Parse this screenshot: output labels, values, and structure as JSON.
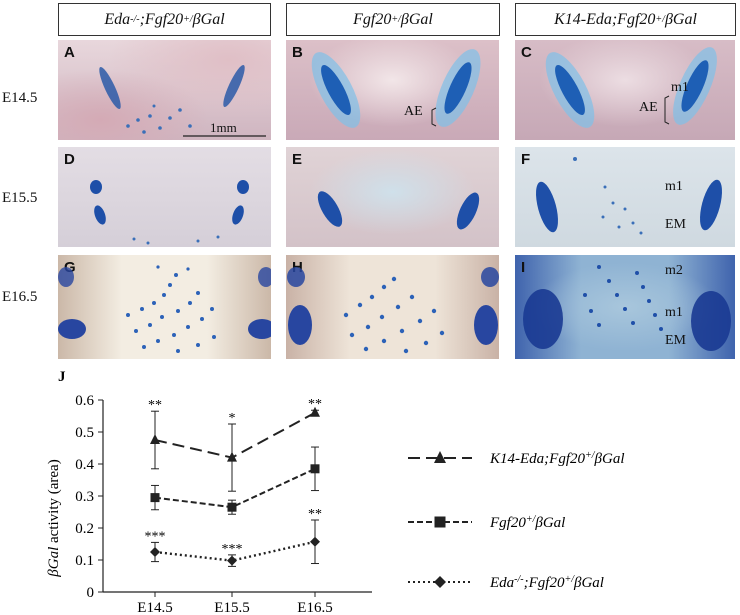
{
  "headers": [
    {
      "main": "Eda",
      "sup": "-/-",
      "rest": ";Fgf20",
      "sup2": "+/",
      "end": "βGal"
    },
    {
      "main": "Fgf20",
      "sup": "+/",
      "rest": "βGal",
      "sup2": "",
      "end": ""
    },
    {
      "main": "K14-Eda;Fgf20",
      "sup": "+/",
      "rest": "βGal",
      "sup2": "",
      "end": ""
    }
  ],
  "rows": [
    "E14.5",
    "E15.5",
    "E16.5"
  ],
  "panels": [
    {
      "letter": "A",
      "ann": [],
      "scale": "1mm"
    },
    {
      "letter": "B",
      "ann": [
        "AE"
      ]
    },
    {
      "letter": "C",
      "ann": [
        "m1",
        "AE"
      ]
    },
    {
      "letter": "D",
      "ann": []
    },
    {
      "letter": "E",
      "ann": []
    },
    {
      "letter": "F",
      "ann": [
        "m1",
        "EM"
      ]
    },
    {
      "letter": "G",
      "ann": []
    },
    {
      "letter": "H",
      "ann": []
    },
    {
      "letter": "I",
      "ann": [
        "m2",
        "m1",
        "EM"
      ]
    }
  ],
  "chart_data": {
    "type": "line",
    "panel_label": "J",
    "ylabel_main": "βGal",
    "ylabel_rest": " activity (area)",
    "categories": [
      "E14.5",
      "E15.5",
      "E16.5"
    ],
    "ylim": [
      0,
      0.6
    ],
    "yticks": [
      "0",
      "0.1",
      "0.2",
      "0.3",
      "0.4",
      "0.5",
      "0.6"
    ],
    "series": [
      {
        "name": "K14-Eda;Fgf20+/βGal",
        "legend_main": "K14-Eda;Fgf20",
        "legend_sup": "+/",
        "legend_end": "βGal",
        "marker": "triangle",
        "dash": "long",
        "values": [
          0.475,
          0.42,
          0.56
        ],
        "err": [
          0.09,
          0.105,
          0.008
        ],
        "sig": [
          "**",
          "*",
          "**"
        ]
      },
      {
        "name": "Fgf20+/βGal",
        "legend_main": "Fgf20",
        "legend_sup": "+/",
        "legend_end": "βGal",
        "marker": "square",
        "dash": "short",
        "values": [
          0.295,
          0.265,
          0.385
        ],
        "err": [
          0.038,
          0.022,
          0.068
        ],
        "sig": [
          "",
          "",
          ""
        ]
      },
      {
        "name": "Eda-/-;Fgf20+/βGal",
        "legend_main": "Eda",
        "legend_sup": "-/-",
        "legend_mid": ";Fgf20",
        "legend_sup2": "+/",
        "legend_end": "βGal",
        "marker": "diamond",
        "dash": "dot",
        "values": [
          0.125,
          0.098,
          0.157
        ],
        "err": [
          0.03,
          0.018,
          0.068
        ],
        "sig": [
          "***",
          "***",
          "**"
        ]
      }
    ]
  }
}
